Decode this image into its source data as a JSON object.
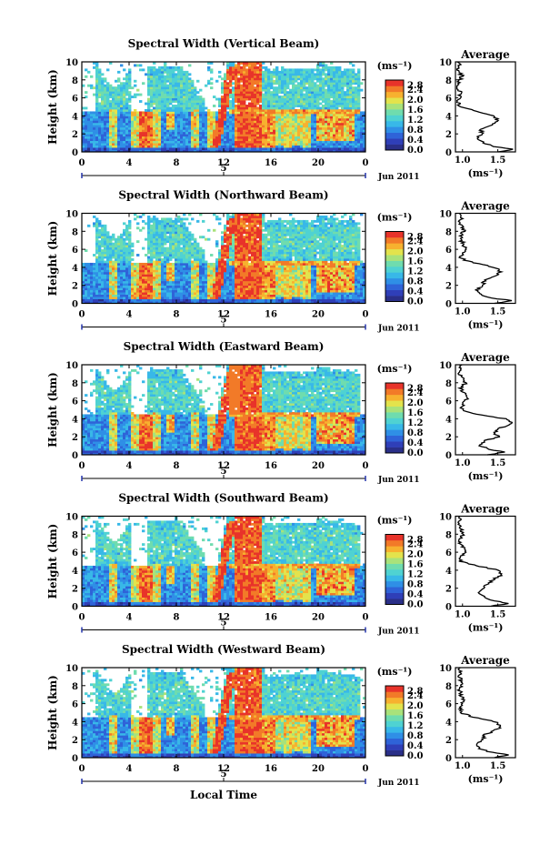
{
  "figure": {
    "x_axis_label": "Local Time",
    "y_axis_label": "Height (km)",
    "units": "(ms⁻¹)",
    "date_label": "Jun 2011",
    "day_marker": "5",
    "average_title": "Average",
    "average_xlabel": "(ms⁻¹)"
  },
  "colorbar": {
    "ticks": [
      "2.8",
      "2.4",
      "2.0",
      "1.6",
      "1.2",
      "0.8",
      "0.4",
      "0.0"
    ],
    "vmin": 0.0,
    "vmax": 2.8,
    "colors": [
      "#2a2f88",
      "#2f3fb8",
      "#2f63d8",
      "#2f8fe6",
      "#38b8e8",
      "#4fd2d2",
      "#6fdcae",
      "#a9e27a",
      "#e3e34c",
      "#f7b12f",
      "#f27a28",
      "#e8332a"
    ]
  },
  "chart_data": [
    {
      "type": "heatmap",
      "title": "Spectral Width (Vertical Beam)",
      "xlabel": "",
      "ylabel": "Height (km)",
      "xlim": [
        0,
        24
      ],
      "ylim": [
        0,
        10
      ],
      "xticks": [
        "0",
        "4",
        "8",
        "12",
        "16",
        "20",
        "0"
      ],
      "yticks": [
        "0",
        "2",
        "4",
        "6",
        "8",
        "10"
      ],
      "colorbar_units": "(ms⁻¹)",
      "colorbar_range": [
        0.0,
        2.8
      ],
      "average_profile": {
        "title": "Average",
        "xlabel": "(ms⁻¹)",
        "xticks": [
          "1.0",
          "1.5"
        ],
        "xlim": [
          0.9,
          1.75
        ],
        "ylim": [
          0,
          10
        ],
        "height_km": [
          0,
          0.3,
          0.6,
          1.0,
          1.5,
          2.0,
          2.5,
          3.0,
          3.5,
          4.0,
          4.5,
          5.0,
          5.5,
          6.0,
          6.5,
          7.0,
          7.5,
          8.0,
          8.5,
          9.0,
          9.5,
          10.0
        ],
        "width_ms": [
          1.5,
          1.72,
          1.45,
          1.3,
          1.2,
          1.28,
          1.25,
          1.4,
          1.5,
          1.45,
          1.2,
          0.97,
          0.93,
          0.95,
          0.97,
          0.94,
          0.93,
          0.97,
          0.99,
          0.92,
          0.95,
          0.95
        ]
      }
    },
    {
      "type": "heatmap",
      "title": "Spectral Width (Northward Beam)",
      "xlabel": "",
      "ylabel": "Height (km)",
      "xlim": [
        0,
        24
      ],
      "ylim": [
        0,
        10
      ],
      "xticks": [
        "0",
        "4",
        "8",
        "12",
        "16",
        "20",
        "0"
      ],
      "yticks": [
        "0",
        "2",
        "4",
        "6",
        "8",
        "10"
      ],
      "colorbar_units": "(ms⁻¹)",
      "colorbar_range": [
        0.0,
        2.8
      ],
      "average_profile": {
        "title": "Average",
        "xlabel": "(ms⁻¹)",
        "xticks": [
          "1.0",
          "1.5"
        ],
        "xlim": [
          0.9,
          1.75
        ],
        "ylim": [
          0,
          10
        ],
        "height_km": [
          0,
          0.3,
          0.6,
          1.0,
          1.5,
          2.0,
          2.5,
          3.0,
          3.5,
          4.0,
          4.5,
          5.0,
          5.5,
          6.0,
          6.5,
          7.0,
          7.5,
          8.0,
          8.5,
          9.0,
          9.5,
          10.0
        ],
        "width_ms": [
          1.45,
          1.7,
          1.4,
          1.25,
          1.2,
          1.3,
          1.3,
          1.45,
          1.55,
          1.45,
          1.15,
          0.97,
          1.0,
          1.05,
          1.02,
          0.98,
          0.97,
          1.02,
          0.99,
          0.96,
          0.98,
          0.97
        ]
      }
    },
    {
      "type": "heatmap",
      "title": "Spectral Width (Eastward Beam)",
      "xlabel": "",
      "ylabel": "Height (km)",
      "xlim": [
        0,
        24
      ],
      "ylim": [
        0,
        10
      ],
      "xticks": [
        "0",
        "4",
        "8",
        "12",
        "16",
        "20",
        "0"
      ],
      "yticks": [
        "0",
        "2",
        "4",
        "6",
        "8",
        "10"
      ],
      "colorbar_units": "(ms⁻¹)",
      "colorbar_range": [
        0.0,
        2.8
      ],
      "average_profile": {
        "title": "Average",
        "xlabel": "(ms⁻¹)",
        "xticks": [
          "1.0",
          "1.5"
        ],
        "xlim": [
          0.9,
          1.75
        ],
        "ylim": [
          0,
          10
        ],
        "height_km": [
          0,
          0.3,
          0.6,
          1.0,
          1.5,
          2.0,
          2.5,
          3.0,
          3.5,
          4.0,
          4.5,
          5.0,
          5.5,
          6.0,
          6.5,
          7.0,
          7.5,
          8.0,
          8.5,
          9.0,
          9.5,
          10.0
        ],
        "width_ms": [
          1.35,
          1.6,
          1.4,
          1.25,
          1.3,
          1.5,
          1.45,
          1.55,
          1.7,
          1.6,
          1.2,
          0.98,
          1.0,
          1.05,
          1.08,
          1.0,
          0.98,
          1.05,
          1.0,
          0.96,
          0.98,
          0.97
        ]
      }
    },
    {
      "type": "heatmap",
      "title": "Spectral Width (Southward Beam)",
      "xlabel": "",
      "ylabel": "Height (km)",
      "xlim": [
        0,
        24
      ],
      "ylim": [
        0,
        10
      ],
      "xticks": [
        "0",
        "4",
        "8",
        "12",
        "16",
        "20",
        "0"
      ],
      "yticks": [
        "0",
        "2",
        "4",
        "6",
        "8",
        "10"
      ],
      "colorbar_units": "(ms⁻¹)",
      "colorbar_range": [
        0.0,
        2.8
      ],
      "average_profile": {
        "title": "Average",
        "xlabel": "(ms⁻¹)",
        "xticks": [
          "1.0",
          "1.5"
        ],
        "xlim": [
          0.9,
          1.75
        ],
        "ylim": [
          0,
          10
        ],
        "height_km": [
          0,
          0.3,
          0.6,
          1.0,
          1.5,
          2.0,
          2.5,
          3.0,
          3.5,
          4.0,
          4.5,
          5.0,
          5.5,
          6.0,
          6.5,
          7.0,
          7.5,
          8.0,
          8.5,
          9.0,
          9.5,
          10.0
        ],
        "width_ms": [
          1.4,
          1.65,
          1.45,
          1.3,
          1.25,
          1.3,
          1.35,
          1.45,
          1.55,
          1.5,
          1.2,
          0.97,
          0.98,
          1.03,
          1.02,
          0.97,
          0.96,
          1.02,
          0.99,
          0.95,
          0.97,
          0.96
        ]
      }
    },
    {
      "type": "heatmap",
      "title": "Spectral Width (Westward Beam)",
      "xlabel": "Local Time",
      "ylabel": "Height (km)",
      "xlim": [
        0,
        24
      ],
      "ylim": [
        0,
        10
      ],
      "xticks": [
        "0",
        "4",
        "8",
        "12",
        "16",
        "20",
        "0"
      ],
      "yticks": [
        "0",
        "2",
        "4",
        "6",
        "8",
        "10"
      ],
      "colorbar_units": "(ms⁻¹)",
      "colorbar_range": [
        0.0,
        2.8
      ],
      "average_profile": {
        "title": "Average",
        "xlabel": "(ms⁻¹)",
        "xticks": [
          "1.0",
          "1.5"
        ],
        "xlim": [
          0.9,
          1.75
        ],
        "ylim": [
          0,
          10
        ],
        "height_km": [
          0,
          0.3,
          0.6,
          1.0,
          1.5,
          2.0,
          2.5,
          3.0,
          3.5,
          4.0,
          4.5,
          5.0,
          5.5,
          6.0,
          6.5,
          7.0,
          7.5,
          8.0,
          8.5,
          9.0,
          9.5,
          10.0
        ],
        "width_ms": [
          1.45,
          1.65,
          1.4,
          1.25,
          1.2,
          1.3,
          1.3,
          1.45,
          1.55,
          1.45,
          1.15,
          0.98,
          0.97,
          1.0,
          1.0,
          0.98,
          0.96,
          1.0,
          0.98,
          0.95,
          0.97,
          0.96
        ]
      }
    }
  ]
}
